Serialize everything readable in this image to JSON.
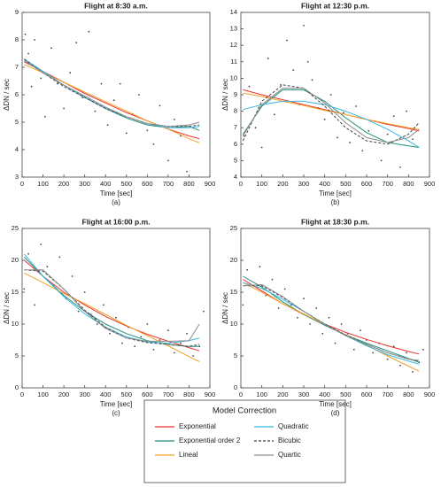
{
  "legend": {
    "title": "Model Correction"
  },
  "chart_data": [
    {
      "type": "scatter",
      "title": "Flight at 8:30 a.m.",
      "xlabel": "Time [sec]",
      "ylabel": "ΔDN / sec",
      "caption": "(a)",
      "xlim": [
        0,
        900
      ],
      "ylim": [
        3,
        9
      ],
      "xticks": [
        0,
        100,
        200,
        300,
        400,
        500,
        600,
        700,
        800,
        900
      ],
      "yticks": [
        3,
        4,
        5,
        6,
        7,
        8,
        9
      ],
      "points": {
        "color": "#444",
        "x": [
          15,
          30,
          45,
          60,
          90,
          110,
          140,
          170,
          200,
          230,
          260,
          290,
          320,
          350,
          380,
          410,
          440,
          470,
          500,
          530,
          560,
          600,
          630,
          660,
          700,
          730,
          760,
          790,
          820
        ],
        "y": [
          8.2,
          7.5,
          6.3,
          8.0,
          6.6,
          5.2,
          7.7,
          6.4,
          5.5,
          6.8,
          7.9,
          5.9,
          8.3,
          5.4,
          6.4,
          4.9,
          5.8,
          6.4,
          4.6,
          5.3,
          6.0,
          4.7,
          4.2,
          5.6,
          3.6,
          5.1,
          4.5,
          3.2,
          4.8
        ]
      },
      "fit_x": [
        10,
        100,
        200,
        300,
        400,
        500,
        600,
        700,
        800,
        850
      ],
      "series": [
        {
          "name": "Exponential",
          "color": "#e8322d",
          "dash": false,
          "values": [
            7.2,
            6.85,
            6.45,
            6.05,
            5.7,
            5.35,
            5.05,
            4.75,
            4.5,
            4.4
          ]
        },
        {
          "name": "Exponential order 2",
          "color": "#1f8f7a",
          "dash": false,
          "values": [
            7.25,
            6.8,
            6.35,
            5.9,
            5.5,
            5.15,
            4.9,
            4.8,
            4.85,
            4.7
          ]
        },
        {
          "name": "Lineal",
          "color": "#f2a22b",
          "dash": false,
          "values": [
            7.1,
            6.8,
            6.45,
            6.1,
            5.75,
            5.4,
            5.05,
            4.75,
            4.4,
            4.25
          ]
        },
        {
          "name": "Quadratic",
          "color": "#38b6e0",
          "dash": false,
          "values": [
            7.3,
            6.85,
            6.35,
            5.9,
            5.5,
            5.2,
            4.95,
            4.8,
            4.8,
            4.85
          ]
        },
        {
          "name": "Bicubic",
          "color": "#444444",
          "dash": true,
          "values": [
            7.3,
            6.8,
            6.3,
            5.9,
            5.5,
            5.2,
            4.95,
            4.85,
            4.85,
            4.9
          ]
        },
        {
          "name": "Quartic",
          "color": "#8c8c8c",
          "dash": false,
          "values": [
            7.25,
            6.8,
            6.35,
            5.95,
            5.55,
            5.2,
            4.95,
            4.85,
            4.9,
            5.0
          ]
        }
      ]
    },
    {
      "type": "scatter",
      "title": "Flight at 12:30 p.m.",
      "xlabel": "Time [sec]",
      "ylabel": "ΔDN / sec",
      "caption": "(b)",
      "xlim": [
        0,
        900
      ],
      "ylim": [
        4,
        14
      ],
      "xticks": [
        0,
        100,
        200,
        300,
        400,
        500,
        600,
        700,
        800,
        900
      ],
      "yticks": [
        4,
        5,
        6,
        7,
        8,
        9,
        10,
        11,
        12,
        13,
        14
      ],
      "points": {
        "color": "#444",
        "x": [
          15,
          40,
          70,
          100,
          130,
          160,
          190,
          220,
          250,
          280,
          300,
          320,
          340,
          370,
          400,
          430,
          460,
          490,
          520,
          550,
          580,
          610,
          640,
          670,
          700,
          730,
          760,
          790,
          820
        ],
        "y": [
          6.5,
          9.5,
          7.0,
          5.8,
          11.2,
          7.8,
          9.6,
          12.3,
          10.5,
          8.4,
          13.2,
          11.0,
          9.9,
          8.2,
          7.5,
          9.0,
          6.4,
          7.9,
          6.1,
          8.3,
          5.6,
          6.8,
          7.4,
          5.0,
          6.6,
          7.7,
          4.6,
          8.0,
          6.3
        ]
      },
      "fit_x": [
        10,
        100,
        200,
        300,
        400,
        500,
        600,
        700,
        800,
        850
      ],
      "series": [
        {
          "name": "Exponential",
          "color": "#e8322d",
          "dash": false,
          "values": [
            9.3,
            9.0,
            8.7,
            8.4,
            8.1,
            7.8,
            7.5,
            7.2,
            6.95,
            6.8
          ]
        },
        {
          "name": "Exponential order 2",
          "color": "#1f8f7a",
          "dash": false,
          "values": [
            6.6,
            8.3,
            9.3,
            9.3,
            8.6,
            7.6,
            6.7,
            6.1,
            5.9,
            5.8
          ]
        },
        {
          "name": "Lineal",
          "color": "#f2a22b",
          "dash": false,
          "values": [
            9.1,
            8.9,
            8.6,
            8.35,
            8.05,
            7.8,
            7.5,
            7.25,
            7.0,
            6.9
          ]
        },
        {
          "name": "Quadratic",
          "color": "#38b6e0",
          "dash": false,
          "values": [
            8.1,
            8.4,
            8.6,
            8.6,
            8.4,
            8.0,
            7.5,
            6.9,
            6.2,
            5.8
          ]
        },
        {
          "name": "Bicubic",
          "color": "#444444",
          "dash": true,
          "values": [
            6.2,
            8.6,
            9.6,
            9.4,
            8.3,
            7.0,
            6.2,
            6.0,
            6.6,
            7.3
          ]
        },
        {
          "name": "Quartic",
          "color": "#8c8c8c",
          "dash": false,
          "values": [
            6.5,
            8.4,
            9.4,
            9.4,
            8.5,
            7.3,
            6.4,
            6.1,
            6.4,
            6.9
          ]
        }
      ]
    },
    {
      "type": "scatter",
      "title": "Flight at 16:00 p.m.",
      "xlabel": "Time [sec]",
      "ylabel": "ΔDN / sec",
      "caption": "(c)",
      "xlim": [
        0,
        900
      ],
      "ylim": [
        0,
        25
      ],
      "xticks": [
        0,
        100,
        200,
        300,
        400,
        500,
        600,
        700,
        800,
        900
      ],
      "yticks": [
        0,
        5,
        10,
        15,
        20,
        25
      ],
      "points": {
        "color": "#444",
        "x": [
          10,
          30,
          60,
          90,
          120,
          150,
          180,
          210,
          240,
          270,
          300,
          330,
          360,
          390,
          420,
          450,
          480,
          510,
          540,
          570,
          600,
          630,
          660,
          700,
          730,
          760,
          790,
          820,
          850,
          870
        ],
        "y": [
          15.5,
          21.0,
          13.0,
          22.5,
          19.0,
          16.0,
          20.5,
          14.0,
          17.5,
          12.0,
          15.0,
          11.5,
          10.0,
          13.0,
          8.5,
          11.0,
          7.0,
          9.5,
          6.5,
          8.0,
          10.0,
          6.0,
          7.5,
          9.0,
          5.5,
          7.0,
          8.5,
          5.0,
          6.5,
          12.0
        ]
      },
      "fit_x": [
        10,
        100,
        200,
        300,
        400,
        500,
        600,
        700,
        800,
        850
      ],
      "series": [
        {
          "name": "Exponential",
          "color": "#e8322d",
          "dash": false,
          "values": [
            20,
            17.5,
            15,
            13,
            11.2,
            9.7,
            8.4,
            7.3,
            6.3,
            5.8
          ]
        },
        {
          "name": "Exponential order 2",
          "color": "#1f8f7a",
          "dash": false,
          "values": [
            20.5,
            17.5,
            14.5,
            12,
            10,
            8.5,
            7.4,
            6.8,
            6.5,
            6.5
          ]
        },
        {
          "name": "Lineal",
          "color": "#f2a22b",
          "dash": false,
          "values": [
            18,
            16.5,
            14.8,
            13.2,
            11.5,
            9.8,
            8.2,
            6.6,
            4.9,
            4.1
          ]
        },
        {
          "name": "Quadratic",
          "color": "#38b6e0",
          "dash": false,
          "values": [
            21,
            17.5,
            14.3,
            11.6,
            9.5,
            8,
            7.2,
            7,
            7.4,
            7.8
          ]
        },
        {
          "name": "Bicubic",
          "color": "#444444",
          "dash": true,
          "values": [
            18.5,
            18.3,
            15.5,
            12.2,
            9.5,
            7.8,
            7.1,
            6.8,
            6.5,
            6.8
          ]
        },
        {
          "name": "Quartic",
          "color": "#8c8c8c",
          "dash": false,
          "values": [
            18.5,
            18.5,
            15.5,
            12,
            9.3,
            7.8,
            7.3,
            7.3,
            7.4,
            10
          ]
        }
      ]
    },
    {
      "type": "scatter",
      "title": "Flight at 18:30 p.m.",
      "xlabel": "Time [sec]",
      "ylabel": "ΔDN / sec",
      "caption": "(d)",
      "xlim": [
        0,
        900
      ],
      "ylim": [
        0,
        25
      ],
      "xticks": [
        0,
        100,
        200,
        300,
        400,
        500,
        600,
        700,
        800,
        900
      ],
      "yticks": [
        0,
        5,
        10,
        15,
        20,
        25
      ],
      "points": {
        "color": "#444",
        "x": [
          10,
          30,
          60,
          90,
          120,
          150,
          180,
          210,
          240,
          270,
          300,
          330,
          360,
          390,
          420,
          450,
          480,
          510,
          540,
          570,
          600,
          630,
          660,
          700,
          730,
          760,
          790,
          820,
          850,
          870
        ],
        "y": [
          13.0,
          18.5,
          16.0,
          19.0,
          14.5,
          17.0,
          12.5,
          15.5,
          13.0,
          11.0,
          14.0,
          10.0,
          12.5,
          8.5,
          11.0,
          7.0,
          10.0,
          8.5,
          6.0,
          9.0,
          7.5,
          5.5,
          7.0,
          4.5,
          6.5,
          3.5,
          5.5,
          2.5,
          4.0,
          6.0
        ]
      },
      "fit_x": [
        10,
        100,
        200,
        300,
        400,
        500,
        600,
        700,
        800,
        850
      ],
      "series": [
        {
          "name": "Exponential",
          "color": "#e8322d",
          "dash": false,
          "values": [
            17,
            15.2,
            13.2,
            11.5,
            10,
            8.7,
            7.6,
            6.6,
            5.7,
            5.3
          ]
        },
        {
          "name": "Exponential order 2",
          "color": "#1f8f7a",
          "dash": false,
          "values": [
            17.5,
            15.8,
            13.5,
            11.5,
            9.8,
            8.3,
            7,
            5.8,
            4.6,
            4.0
          ]
        },
        {
          "name": "Lineal",
          "color": "#f2a22b",
          "dash": false,
          "values": [
            16.5,
            15,
            13.2,
            11.6,
            9.9,
            8.3,
            6.7,
            5,
            3.4,
            2.6
          ]
        },
        {
          "name": "Quadratic",
          "color": "#38b6e0",
          "dash": false,
          "values": [
            16.5,
            15.6,
            13.9,
            12,
            10,
            8.2,
            6.6,
            5.2,
            4.2,
            3.7
          ]
        },
        {
          "name": "Bicubic",
          "color": "#444444",
          "dash": true,
          "values": [
            16,
            16,
            14.2,
            12,
            10,
            8.3,
            6.8,
            5.5,
            4.5,
            4.2
          ]
        },
        {
          "name": "Quartic",
          "color": "#8c8c8c",
          "dash": false,
          "values": [
            16,
            16.2,
            14.3,
            12,
            9.9,
            8.2,
            6.8,
            5.5,
            4.5,
            4.3
          ]
        }
      ]
    }
  ]
}
